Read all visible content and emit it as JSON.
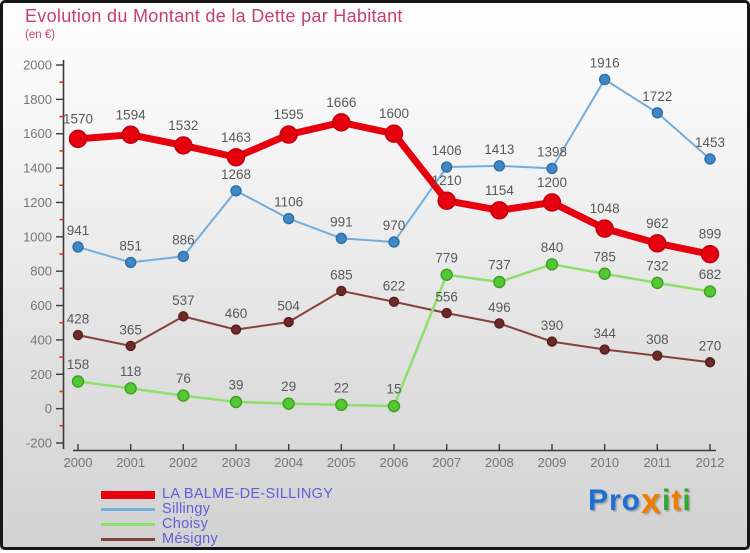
{
  "header": {
    "title": "Evolution du Montant de la Dette par Habitant",
    "subtitle": "(en €)"
  },
  "chart_data": {
    "type": "line",
    "title": "Evolution du Montant de la Dette par Habitant",
    "subtitle_unit": "(en €)",
    "x": [
      2000,
      2001,
      2002,
      2003,
      2004,
      2005,
      2006,
      2007,
      2008,
      2009,
      2010,
      2011,
      2012
    ],
    "series": [
      {
        "name": "Sillingy",
        "values": [
          941,
          851,
          886,
          1268,
          1106,
          991,
          970,
          1406,
          1413,
          1398,
          1916,
          1722,
          1453
        ],
        "line_color": "#72aedd",
        "marker_color": "#3f88c5",
        "marker_stroke": "#2f6ea6",
        "line_width": 2,
        "marker_radius": 5
      },
      {
        "name": "Mésigny",
        "values": [
          428,
          365,
          537,
          460,
          504,
          685,
          622,
          556,
          496,
          390,
          344,
          308,
          270
        ],
        "line_color": "#84423c",
        "marker_color": "#6d2b28",
        "marker_stroke": "#581f1d",
        "line_width": 2,
        "marker_radius": 4.5
      },
      {
        "name": "Choisy",
        "values": [
          158,
          118,
          76,
          39,
          29,
          22,
          15,
          779,
          737,
          840,
          785,
          732,
          682
        ],
        "line_color": "#8ce06b",
        "marker_color": "#54c735",
        "marker_stroke": "#3da11f",
        "line_width": 2.5,
        "marker_radius": 5.5
      },
      {
        "name": "LA BALME-DE-SILLINGY",
        "values": [
          1570,
          1594,
          1532,
          1463,
          1595,
          1666,
          1600,
          1210,
          1154,
          1200,
          1048,
          962,
          899
        ],
        "line_color": "#e7000e",
        "marker_color": "#e7000e",
        "marker_stroke": "#bf0010",
        "line_width": 7,
        "marker_radius": 8.5
      }
    ],
    "legend_order": [
      "LA BALME-DE-SILLINGY",
      "Sillingy",
      "Choisy",
      "Mésigny"
    ],
    "legend_position": "bottom-left",
    "ylim": [
      -200,
      2000
    ],
    "y_ticks": [
      2000,
      1800,
      1600,
      1400,
      1200,
      1000,
      800,
      600,
      400,
      200,
      0,
      -200
    ],
    "grid": false,
    "axis_color": "#3a3a3a",
    "minor_tick_color": "#e03020",
    "tick_label_color": "#757575",
    "data_label_color": "#595959"
  },
  "logo": {
    "parts": [
      {
        "t": "Pro",
        "c": "#1e6fd2",
        "big": false
      },
      {
        "t": "x",
        "c": "#f07d00",
        "big": true
      },
      {
        "t": "i",
        "c": "#32a532",
        "big": false
      },
      {
        "t": "t",
        "c": "#f07d00",
        "big": false
      },
      {
        "t": "i",
        "c": "#32a532",
        "big": false
      }
    ]
  }
}
